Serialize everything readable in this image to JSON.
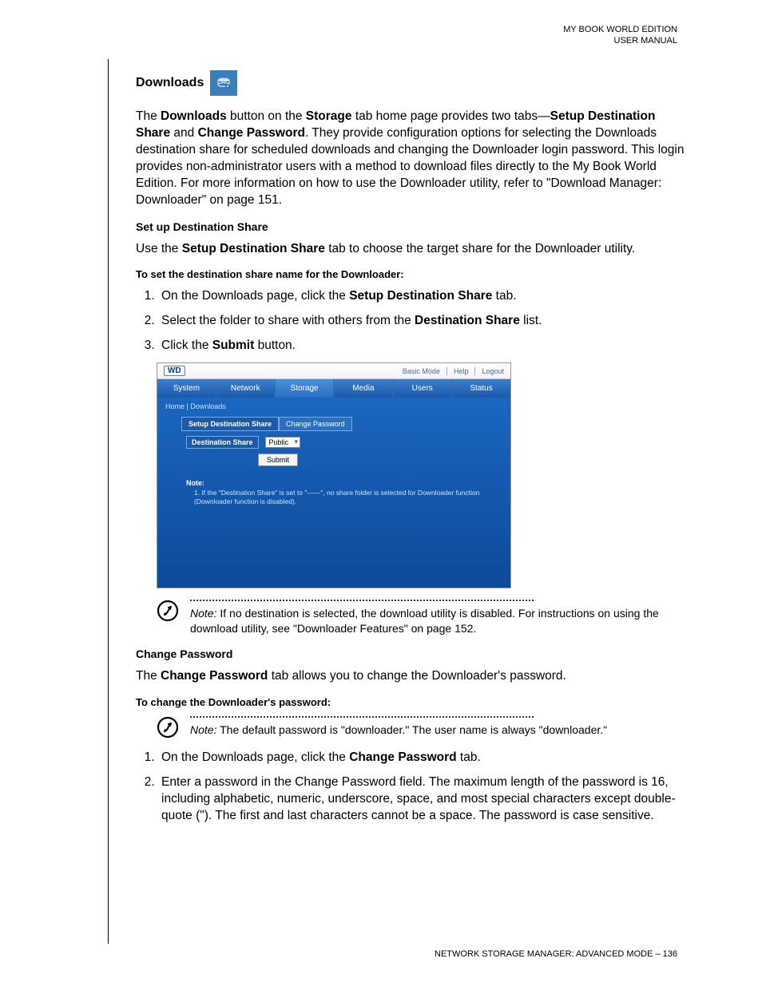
{
  "header": {
    "line1": "MY BOOK WORLD EDITION",
    "line2": "USER MANUAL"
  },
  "section_title": "Downloads",
  "intro_html": "The <b>Downloads</b> button on the <b>Storage</b> tab home page provides two tabs—<b>Setup Destination Share</b> and <b>Change Password</b>. They provide configuration options for selecting the Downloads destination share for scheduled downloads and changing the Downloader login password. This login provides non-administrator users with a method to download files directly to the My Book World Edition. For more information on how to use the Downloader utility, refer to \"Download Manager: Downloader\" on page 151.",
  "setup_h": "Set up Destination Share",
  "setup_p_html": "Use the <b>Setup Destination Share</b> tab to choose the target share for the Downloader utility.",
  "setup_proc_h": "To set the destination share name for the Downloader:",
  "setup_steps": [
    "On the Downloads page, click the <b>Setup Destination Share</b> tab.",
    "Select the folder to share with others from the <b>Destination Share</b> list.",
    "Click the <b>Submit</b> button."
  ],
  "screenshot": {
    "logo": "WD",
    "top_links": [
      "Basic Mode",
      "Help",
      "Logout"
    ],
    "tabs": [
      "System",
      "Network",
      "Storage",
      "Media",
      "Users",
      "Status"
    ],
    "selected_tab": "Storage",
    "breadcrumb": "Home | Downloads",
    "subtabs": [
      "Setup Destination Share",
      "Change Password"
    ],
    "selected_subtab": "Setup Destination Share",
    "dest_label": "Destination Share",
    "dest_value": "Public",
    "submit_label": "Submit",
    "note_h": "Note:",
    "note_text": "1.  If the \"Destination Share\" is set to \"------\", no share folder is selected for Downloader function (Downloader function is disabled)."
  },
  "note1_html": "<i>Note:</i> If no destination is selected, the download utility is disabled. For instructions on using the download utility, see \"Downloader Features\" on page 152.",
  "cp_h": "Change Password",
  "cp_p_html": "The <b>Change Password</b> tab allows you to change the Downloader's password.",
  "cp_proc_h": "To change the Downloader's password:",
  "note2_html": "<i>Note:</i> The default password is \"downloader.\" The user name is always \"downloader.\"",
  "cp_steps": [
    "On the Downloads page, click the <b>Change Password</b> tab.",
    "Enter a password in the Change Password field. The maximum length of the password is 16, including alphabetic, numeric, underscore, space, and most special characters except double-quote (\"). The first and last characters cannot be a space. The password is case sensitive."
  ],
  "footer": "NETWORK STORAGE MANAGER: ADVANCED MODE – 136"
}
